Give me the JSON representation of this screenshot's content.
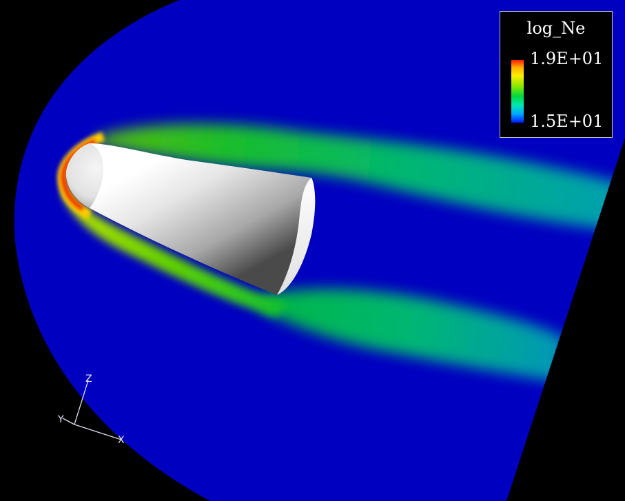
{
  "legend": {
    "title": "log_Ne",
    "max_label": "1.9E+01",
    "min_label": "1.5E+01",
    "colormap": [
      "#ff1a00",
      "#ffb000",
      "#ffee00",
      "#88e800",
      "#00d840",
      "#00e8b0",
      "#00a8ff",
      "#0018ff"
    ]
  },
  "axes": {
    "x_label": "X",
    "y_label": "Y",
    "z_label": "Z"
  },
  "colors": {
    "background": "#000000",
    "domain_fill": "#0000c0",
    "capsule": "#d8d8d8"
  }
}
